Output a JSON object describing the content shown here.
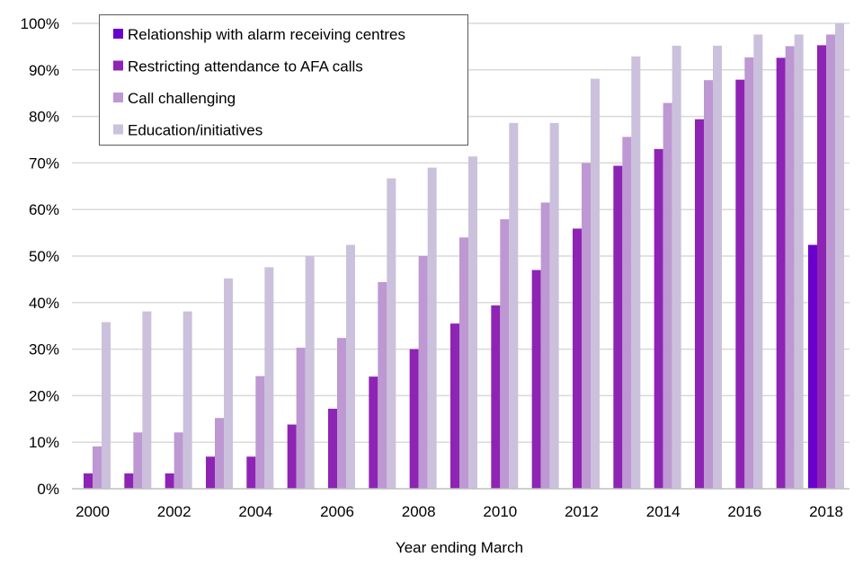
{
  "chart_data": {
    "type": "bar",
    "title": "",
    "xlabel": "Year ending March",
    "ylabel": "",
    "ylim": [
      0,
      100
    ],
    "yticks": [
      "0%",
      "10%",
      "20%",
      "30%",
      "40%",
      "50%",
      "60%",
      "70%",
      "80%",
      "90%",
      "100%"
    ],
    "grid": true,
    "legend_position": "top-left",
    "categories": [
      "2000",
      "2001",
      "2002",
      "2003",
      "2004",
      "2005",
      "2006",
      "2007",
      "2008",
      "2009",
      "2010",
      "2011",
      "2012",
      "2013",
      "2014",
      "2015",
      "2016",
      "2017",
      "2018"
    ],
    "xtick_labels": [
      "2000",
      "",
      "2002",
      "",
      "2004",
      "",
      "2006",
      "",
      "2008",
      "",
      "2010",
      "",
      "2012",
      "",
      "2014",
      "",
      "2016",
      "",
      "2018"
    ],
    "series": [
      {
        "name": "Relationship with alarm receiving centres",
        "color": "#6a00cc",
        "values": [
          null,
          null,
          null,
          null,
          null,
          null,
          null,
          null,
          null,
          null,
          null,
          null,
          null,
          null,
          null,
          null,
          null,
          null,
          52.4
        ]
      },
      {
        "name": "Restricting attendance to AFA calls",
        "color": "#8e24b4",
        "values": [
          3.3,
          3.3,
          3.3,
          6.9,
          6.9,
          13.8,
          17.2,
          24.1,
          30.0,
          35.5,
          39.4,
          47.0,
          55.9,
          69.4,
          73.0,
          79.4,
          87.9,
          92.6,
          95.3
        ]
      },
      {
        "name": "Call challenging",
        "color": "#bd98d2",
        "values": [
          9.1,
          12.1,
          12.1,
          15.2,
          24.2,
          30.3,
          32.4,
          44.4,
          50.0,
          54.0,
          57.9,
          61.5,
          70.0,
          75.6,
          82.9,
          87.8,
          92.7,
          95.1,
          97.6
        ]
      },
      {
        "name": "Education/initiatives",
        "color": "#cbc1dc",
        "values": [
          35.8,
          38.1,
          38.1,
          45.2,
          47.6,
          50.0,
          52.4,
          66.7,
          69.0,
          71.4,
          78.6,
          78.6,
          88.1,
          92.9,
          95.2,
          95.2,
          97.6,
          97.6,
          100.0
        ]
      }
    ]
  }
}
